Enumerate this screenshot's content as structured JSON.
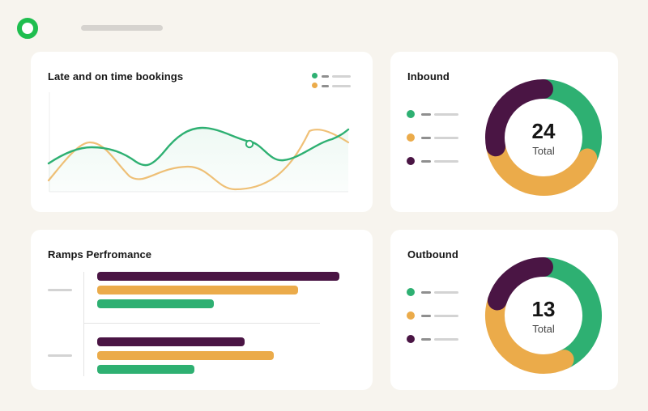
{
  "header": {
    "logo_icon": "ring-logo-icon",
    "logo_color": "#1fbe4f"
  },
  "colors": {
    "green": "#2eb072",
    "orange": "#ebab4a",
    "purple": "#4a1544",
    "placeholder": "#d3d3d3"
  },
  "bookings": {
    "title": "Late and on time bookings",
    "legend": [
      {
        "color": "#2eb072"
      },
      {
        "color": "#ebab4a"
      }
    ]
  },
  "inbound": {
    "title": "Inbound",
    "total": "24",
    "total_label": "Total",
    "segments": [
      {
        "color": "#2eb072",
        "fraction": 0.32
      },
      {
        "color": "#ebab4a",
        "fraction": 0.4
      },
      {
        "color": "#4a1544",
        "fraction": 0.28
      }
    ]
  },
  "outbound": {
    "title": "Outbound",
    "total": "13",
    "total_label": "Total",
    "segments": [
      {
        "color": "#2eb072",
        "fraction": 0.43
      },
      {
        "color": "#ebab4a",
        "fraction": 0.37
      },
      {
        "color": "#4a1544",
        "fraction": 0.2
      }
    ]
  },
  "ramps": {
    "title": "Ramps Perfromance",
    "groups": [
      {
        "bars": [
          {
            "color": "#4a1544",
            "value": 1.0
          },
          {
            "color": "#ebab4a",
            "value": 0.83
          },
          {
            "color": "#2eb072",
            "value": 0.48
          }
        ]
      },
      {
        "bars": [
          {
            "color": "#4a1544",
            "value": 0.61
          },
          {
            "color": "#ebab4a",
            "value": 0.73
          },
          {
            "color": "#2eb072",
            "value": 0.4
          }
        ]
      }
    ]
  }
}
